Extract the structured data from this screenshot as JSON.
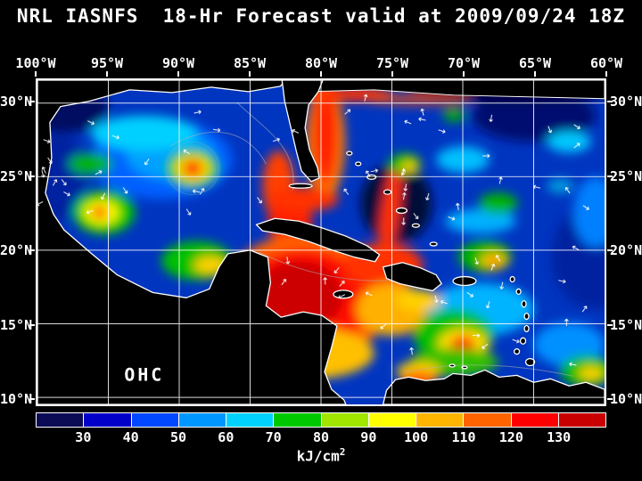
{
  "title": "NRL IASNFS  18-Hr Forecast valid at 2009/09/24 18Z",
  "map": {
    "lon_labels": [
      "100°W",
      "95°W",
      "90°W",
      "85°W",
      "80°W",
      "75°W",
      "70°W",
      "65°W",
      "60°W"
    ],
    "lat_labels_left": [
      "30°N",
      "25°N",
      "20°N",
      "15°N",
      "10°N"
    ],
    "lat_labels_right": [
      "30°N",
      "25°N",
      "20°N",
      "15°N",
      "10°N"
    ],
    "overlay_label": "OHC"
  },
  "colorbar": {
    "tick_labels": [
      "30",
      "40",
      "50",
      "60",
      "70",
      "80",
      "90",
      "100",
      "110",
      "120",
      "130"
    ],
    "units_text": "kJ/cm",
    "units_sup": "2",
    "segments": [
      "#0a0a55",
      "#0000c8",
      "#0048ff",
      "#0096ff",
      "#00d2ff",
      "#00c800",
      "#a0e600",
      "#ffff00",
      "#ffb400",
      "#ff6400",
      "#ff0000",
      "#c80000"
    ]
  }
}
